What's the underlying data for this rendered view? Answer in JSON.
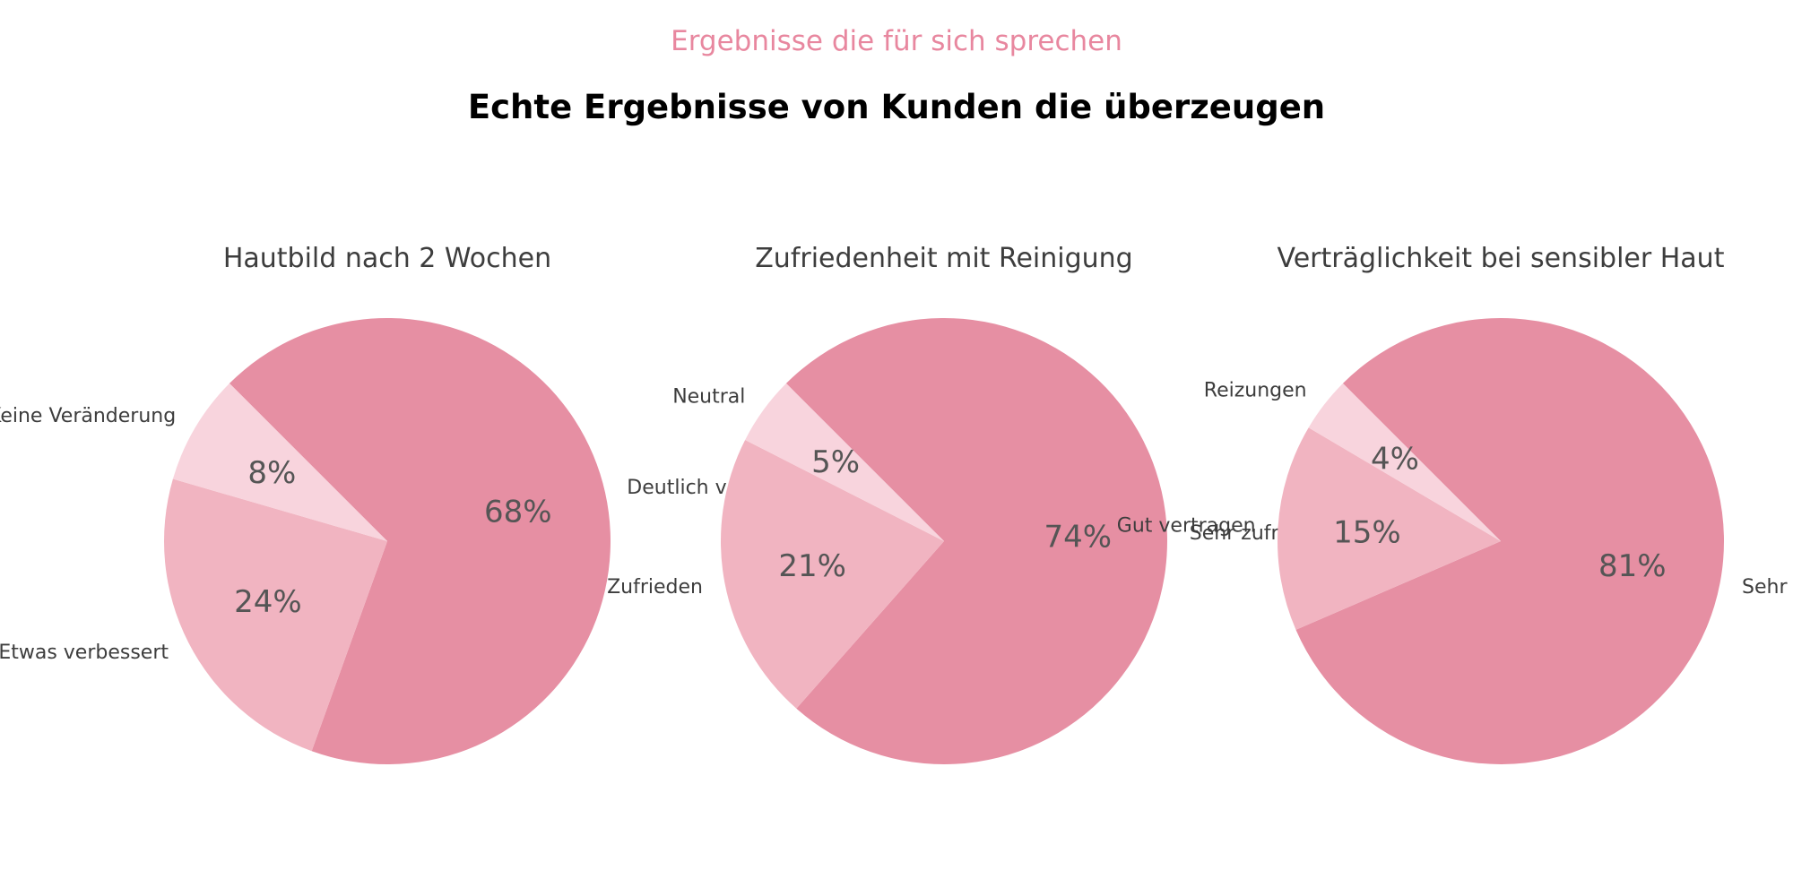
{
  "header": {
    "eyebrow": "Ergebnisse die für sich sprechen",
    "headline": "Echte Ergebnisse von Kunden die überzeugen"
  },
  "colors": {
    "eyebrow": "#e8879f",
    "slice_dark": "#e68fa3",
    "slice_mid": "#f1b4c1",
    "slice_light": "#f8d4dd"
  },
  "chart_data": [
    {
      "type": "pie",
      "title": "Hautbild nach 2 Wochen",
      "slices": [
        {
          "label": "Deutlich verbessert",
          "value": 68,
          "pct_label": "68%",
          "color": "#e68fa3"
        },
        {
          "label": "Etwas verbessert",
          "value": 24,
          "pct_label": "24%",
          "color": "#f1b4c1"
        },
        {
          "label": "Keine Veränderung",
          "value": 8,
          "pct_label": "8%",
          "color": "#f8d4dd"
        }
      ]
    },
    {
      "type": "pie",
      "title": "Zufriedenheit mit Reinigung",
      "slices": [
        {
          "label": "Sehr zufrieden",
          "value": 74,
          "pct_label": "74%",
          "color": "#e68fa3"
        },
        {
          "label": "Zufrieden",
          "value": 21,
          "pct_label": "21%",
          "color": "#f1b4c1"
        },
        {
          "label": "Neutral",
          "value": 5,
          "pct_label": "5%",
          "color": "#f8d4dd"
        }
      ]
    },
    {
      "type": "pie",
      "title": "Verträglichkeit bei sensibler Haut",
      "slices": [
        {
          "label": "Sehr gut vertragen",
          "value": 81,
          "pct_label": "81%",
          "color": "#e68fa3"
        },
        {
          "label": "Gut vertragen",
          "value": 15,
          "pct_label": "15%",
          "color": "#f1b4c1"
        },
        {
          "label": "Reizungen",
          "value": 4,
          "pct_label": "4%",
          "color": "#f8d4dd"
        }
      ]
    }
  ]
}
